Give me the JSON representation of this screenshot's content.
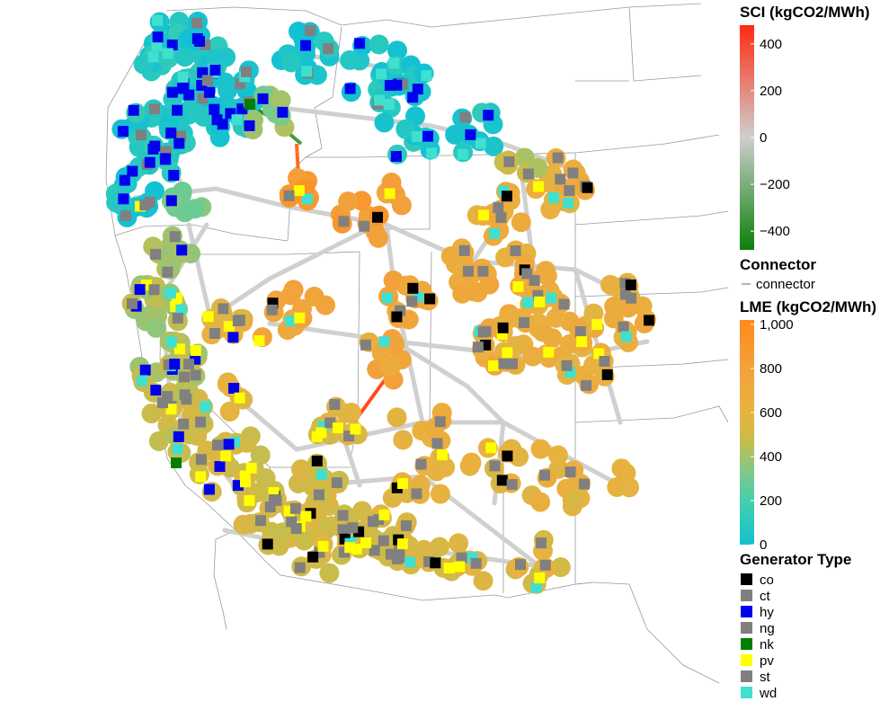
{
  "legend": {
    "sci": {
      "title": "SCI (kgCO2/MWh)",
      "ticks": [
        "400",
        "200",
        "0",
        "−200",
        "−400"
      ],
      "tick_values": [
        400,
        200,
        0,
        -200,
        -400
      ],
      "range": [
        -480,
        480
      ],
      "colors": [
        "#0a7f0a",
        "#cfcfcf",
        "#ff2a10"
      ]
    },
    "connector": {
      "title": "Connector",
      "item_label": "connector",
      "color": "#cccccc"
    },
    "lme": {
      "title": "LME (kgCO2/MWh)",
      "ticks": [
        "1,000",
        "800",
        "600",
        "400",
        "200",
        "0"
      ],
      "tick_values": [
        1000,
        800,
        600,
        400,
        200,
        0
      ],
      "range": [
        0,
        1020
      ],
      "colors": [
        "#13c1d2",
        "#3fcfae",
        "#7cc98c",
        "#c7bd4b",
        "#e8b23f",
        "#f3a03a",
        "#ff8a1a"
      ]
    },
    "generator_type": {
      "title": "Generator Type",
      "items": [
        {
          "label": "co",
          "color": "#000000"
        },
        {
          "label": "ct",
          "color": "#808080"
        },
        {
          "label": "hy",
          "color": "#0000ee"
        },
        {
          "label": "ng",
          "color": "#808080"
        },
        {
          "label": "nk",
          "color": "#007f00"
        },
        {
          "label": "pv",
          "color": "#ffff00"
        },
        {
          "label": "st",
          "color": "#808080"
        },
        {
          "label": "wd",
          "color": "#40e0d0"
        }
      ]
    }
  }
}
